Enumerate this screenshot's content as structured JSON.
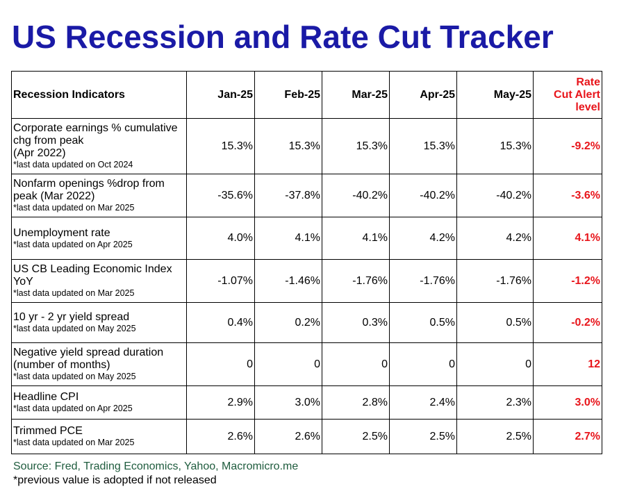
{
  "title": "US Recession and Rate Cut Tracker",
  "table": {
    "headers": {
      "indicator": "Recession Indicators",
      "months": [
        "Jan-25",
        "Feb-25",
        "Mar-25",
        "Apr-25",
        "May-25"
      ],
      "alert_lines": [
        "Rate",
        "Cut Alert",
        "level"
      ]
    },
    "rows": [
      {
        "label_lines": [
          "Corporate earnings % cumulative",
          "chg from peak",
          "(Apr 2022)"
        ],
        "note": "*last data updated on Oct 2024",
        "values": [
          "15.3%",
          "15.3%",
          "15.3%",
          "15.3%",
          "15.3%"
        ],
        "alert": "-9.2%"
      },
      {
        "label_lines": [
          "Nonfarm openings %drop from",
          "peak (Mar 2022)"
        ],
        "note": "*last data updated on Mar 2025",
        "values": [
          "-35.6%",
          "-37.8%",
          "-40.2%",
          "-40.2%",
          "-40.2%"
        ],
        "alert": "-3.6%"
      },
      {
        "label_lines": [
          "Unemployment rate"
        ],
        "note": "*last data updated on Apr 2025",
        "values": [
          "4.0%",
          "4.1%",
          "4.1%",
          "4.2%",
          "4.2%"
        ],
        "alert": "4.1%"
      },
      {
        "label_lines": [
          "US CB Leading Economic Index",
          "YoY"
        ],
        "note": "*last data updated on Mar 2025",
        "values": [
          "-1.07%",
          "-1.46%",
          "-1.76%",
          "-1.76%",
          "-1.76%"
        ],
        "alert": "-1.2%"
      },
      {
        "label_lines": [
          "10 yr - 2 yr yield spread"
        ],
        "note": "*last data updated on May 2025",
        "values": [
          "0.4%",
          "0.2%",
          "0.3%",
          "0.5%",
          "0.5%"
        ],
        "alert": "-0.2%"
      },
      {
        "label_lines": [
          "Negative yield spread duration",
          "(number of  months)"
        ],
        "note": "*last data updated on May 2025",
        "values": [
          "0",
          "0",
          "0",
          "0",
          "0"
        ],
        "alert": "12"
      },
      {
        "label_lines": [
          "Headline CPI"
        ],
        "note": "*last data updated on Apr 2025",
        "values": [
          "2.9%",
          "3.0%",
          "2.8%",
          "2.4%",
          "2.3%"
        ],
        "alert": "3.0%"
      },
      {
        "label_lines": [
          "Trimmed PCE"
        ],
        "note": "*last data updated on Mar 2025",
        "values": [
          "2.6%",
          "2.6%",
          "2.5%",
          "2.5%",
          "2.5%"
        ],
        "alert": "2.7%"
      }
    ]
  },
  "source": "Source: Fred, Trading Economics, Yahoo, Macromicro.me",
  "footnote": "*previous value is adopted if not released"
}
